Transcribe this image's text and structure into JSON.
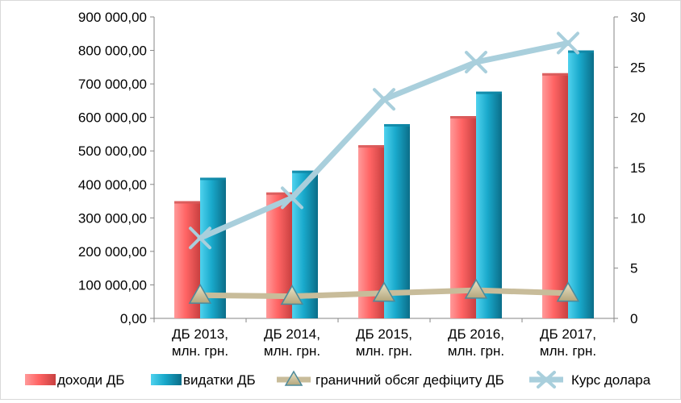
{
  "chart_data": {
    "type": "bar",
    "title": "",
    "categories": [
      [
        "ДБ 2013,",
        "млн. грн."
      ],
      [
        "ДБ 2014,",
        "млн. грн."
      ],
      [
        "ДБ 2015,",
        "млн. грн."
      ],
      [
        "ДБ 2016,",
        "млн. грн."
      ],
      [
        "ДБ 2017,",
        "млн. грн."
      ]
    ],
    "series": [
      {
        "name": "доходи ДБ",
        "kind": "bar",
        "axis": "left",
        "color": "#ff6b6b",
        "values": [
          350000,
          376000,
          517000,
          604000,
          732000
        ]
      },
      {
        "name": "видатки ДБ",
        "kind": "bar",
        "axis": "left",
        "color": "#1aa5c6",
        "values": [
          420000,
          441000,
          580000,
          677000,
          800000
        ]
      },
      {
        "name": "граничний обсяг дефіциту ДБ",
        "kind": "line",
        "axis": "right",
        "color": "#c8bc9a",
        "marker": "triangle",
        "values": [
          2.3,
          2.2,
          2.5,
          2.8,
          2.5
        ]
      },
      {
        "name": "Курс долара",
        "kind": "line",
        "axis": "right",
        "color": "#a9cfdc",
        "marker": "x",
        "values": [
          8.0,
          12.0,
          21.8,
          25.5,
          27.4
        ]
      }
    ],
    "y_left": {
      "min": 0,
      "max": 900000,
      "ticks": [
        "0,00",
        "100 000,00",
        "200 000,00",
        "300 000,00",
        "400 000,00",
        "500 000,00",
        "600 000,00",
        "700 000,00",
        "800 000,00",
        "900 000,00"
      ]
    },
    "y_right": {
      "min": 0,
      "max": 30,
      "ticks": [
        "0",
        "5",
        "10",
        "15",
        "20",
        "25",
        "30"
      ]
    },
    "legend_position": "bottom",
    "grid": false
  }
}
